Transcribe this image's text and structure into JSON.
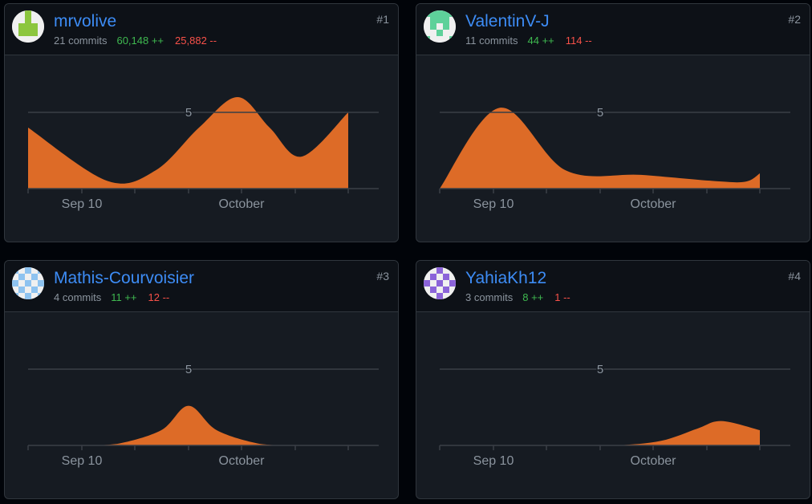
{
  "x_axis_labels": [
    "Sep 10",
    "October"
  ],
  "y_reference_label": "5",
  "colors": {
    "area": "#dd6b27",
    "gridline": "#3a3f46",
    "link": "#3d8cf5",
    "additions": "#3fb950",
    "deletions": "#f85149",
    "muted": "#8b949e"
  },
  "contributors": [
    {
      "rank": "#1",
      "username": "mrvolive",
      "commits": "21 commits",
      "additions": "60,148 ++",
      "deletions": "25,882 --",
      "avatar_icon": "identicon-green-avatar-icon",
      "avatar_color": "#8cc63e"
    },
    {
      "rank": "#2",
      "username": "ValentinV-J",
      "commits": "11 commits",
      "additions": "44 ++",
      "deletions": "114 --",
      "avatar_icon": "identicon-mint-avatar-icon",
      "avatar_color": "#5ed19a"
    },
    {
      "rank": "#3",
      "username": "Mathis-Courvoisier",
      "commits": "4 commits",
      "additions": "11 ++",
      "deletions": "12 --",
      "avatar_icon": "identicon-blue-checker-avatar-icon",
      "avatar_color": "#8ec3f0"
    },
    {
      "rank": "#4",
      "username": "YahiaKh12",
      "commits": "3 commits",
      "additions": "8 ++",
      "deletions": "1 --",
      "avatar_icon": "identicon-purple-avatar-icon",
      "avatar_color": "#8b63d9"
    }
  ],
  "chart_data": [
    {
      "type": "area",
      "series": [
        {
          "values": [
            4.0,
            0.5,
            1.2,
            4.0,
            6.0,
            4.0,
            2.1,
            5.0
          ]
        }
      ],
      "ylim": [
        0,
        10
      ],
      "x_tick_labels": [
        "Sep 10",
        "October"
      ]
    },
    {
      "type": "area",
      "series": [
        {
          "values": [
            0.0,
            5.3,
            1.2,
            0.9,
            0.5,
            0.45,
            1.0
          ]
        }
      ],
      "ylim": [
        0,
        10
      ],
      "x_tick_labels": [
        "Sep 10",
        "October"
      ]
    },
    {
      "type": "area",
      "series": [
        {
          "values": [
            0.0,
            0.0,
            0.1,
            1.0,
            2.6,
            1.0,
            0.1,
            0.0,
            0.0
          ]
        }
      ],
      "ylim": [
        0,
        10
      ],
      "x_tick_labels": [
        "Sep 10",
        "October"
      ]
    },
    {
      "type": "area",
      "series": [
        {
          "values": [
            0.0,
            0.0,
            0.0,
            0.3,
            1.1,
            1.6,
            1.0
          ]
        }
      ],
      "ylim": [
        0,
        10
      ],
      "x_tick_labels": [
        "Sep 10",
        "October"
      ]
    }
  ]
}
